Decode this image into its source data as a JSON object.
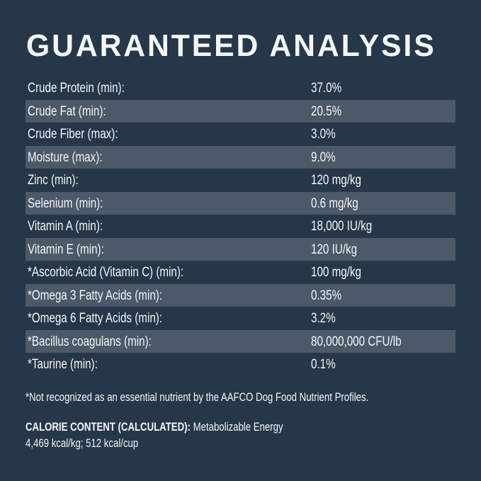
{
  "title": "GUARANTEED ANALYSIS",
  "colors": {
    "background": "#26374a",
    "stripe": "#4b5968",
    "text": "#f4f6f8"
  },
  "rows": [
    {
      "label": "Crude Protein (min):",
      "value": "37.0%"
    },
    {
      "label": "Crude Fat (min):",
      "value": "20.5%"
    },
    {
      "label": "Crude Fiber (max):",
      "value": "3.0%"
    },
    {
      "label": "Moisture (max):",
      "value": "9.0%"
    },
    {
      "label": "Zinc (min):",
      "value": "120 mg/kg"
    },
    {
      "label": "Selenium (min):",
      "value": "0.6 mg/kg"
    },
    {
      "label": "Vitamin A (min):",
      "value": "18,000 IU/kg"
    },
    {
      "label": "Vitamin E (min):",
      "value": "120 IU/kg"
    },
    {
      "label": "*Ascorbic Acid (Vitamin C) (min):",
      "value": "100 mg/kg"
    },
    {
      "label": "*Omega 3 Fatty Acids (min):",
      "value": "0.35%"
    },
    {
      "label": "*Omega 6 Fatty Acids (min):",
      "value": "3.2%"
    },
    {
      "label": "*Bacillus coagulans (min):",
      "value": "80,000,000 CFU/lb"
    },
    {
      "label": "*Taurine (min):",
      "value": "0.1%"
    }
  ],
  "footnote": "*Not recognized as an essential nutrient by the AAFCO Dog Food Nutrient Profiles.",
  "calorie": {
    "heading": "CALORIE CONTENT (CALCULATED):",
    "text": " Metabolizable Energy",
    "values": "4,469 kcal/kg; 512 kcal/cup"
  }
}
